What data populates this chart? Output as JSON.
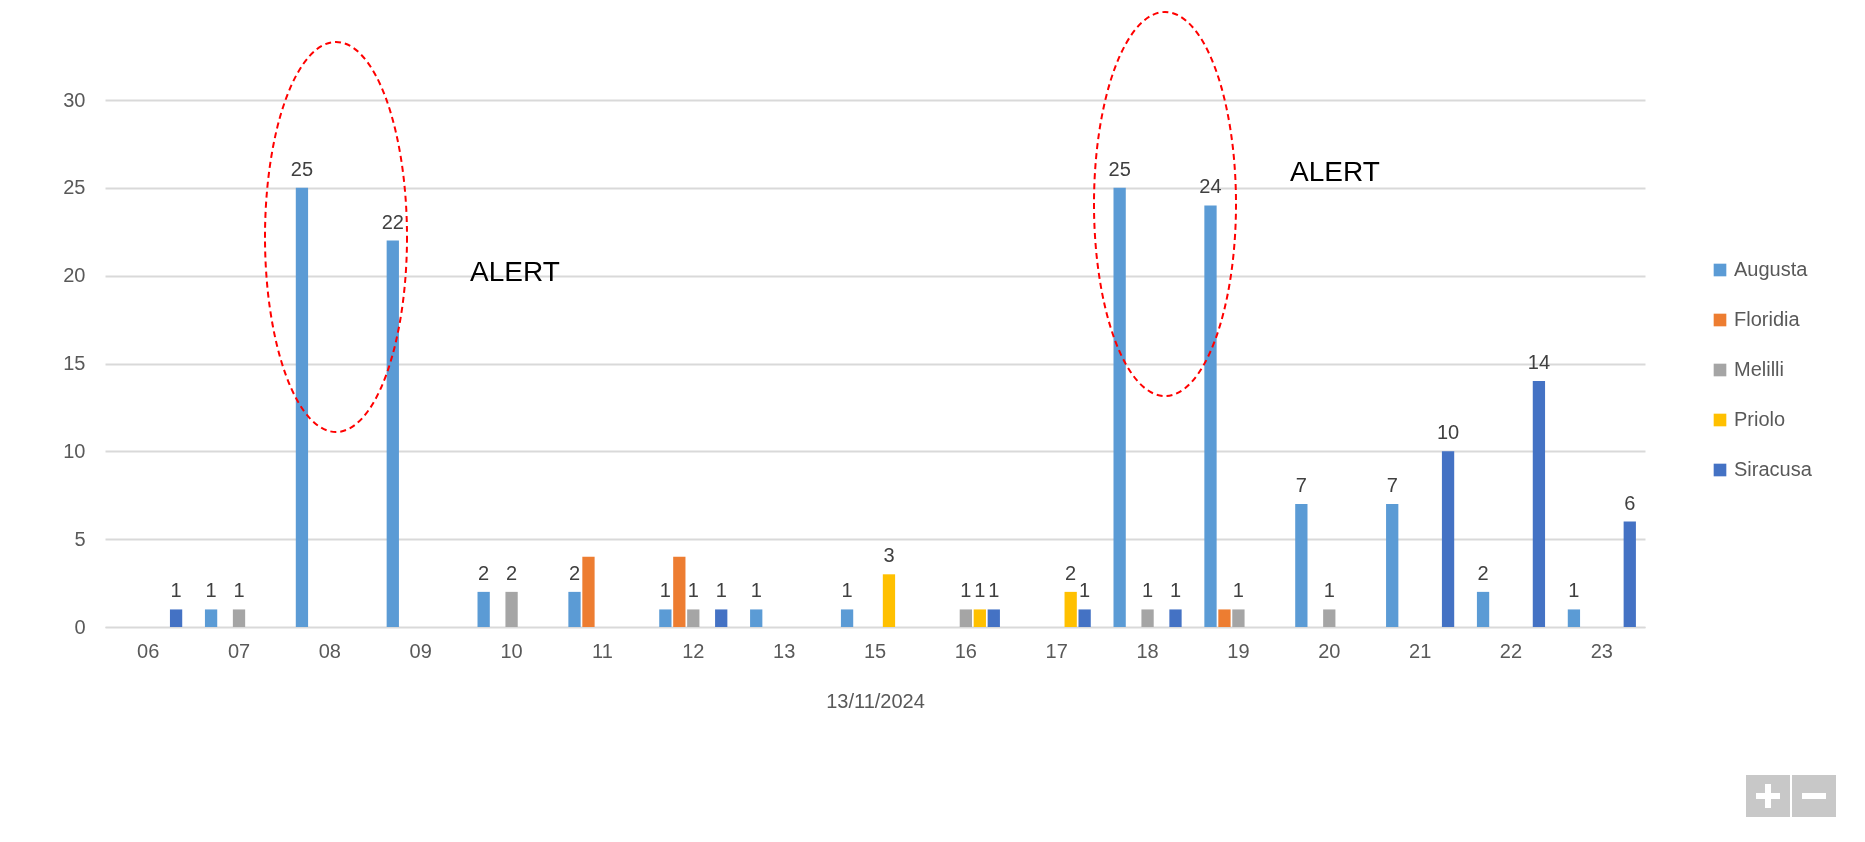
{
  "chart_data": {
    "type": "bar",
    "xlabel": "13/11/2024",
    "categories": [
      "06",
      "07",
      "08",
      "09",
      "10",
      "11",
      "12",
      "13",
      "15",
      "16",
      "17",
      "18",
      "19",
      "20",
      "21",
      "22",
      "23"
    ],
    "series": [
      {
        "name": "Augusta",
        "color": "#5b9bd5",
        "values": [
          null,
          1,
          25,
          22,
          2,
          2,
          1,
          1,
          1,
          null,
          null,
          25,
          24,
          7,
          7,
          2,
          1
        ],
        "value_labels": [
          null,
          "1",
          "25",
          "22",
          "2",
          "2",
          "1",
          "1",
          "1",
          null,
          null,
          "25",
          "24",
          "7",
          "7",
          "2",
          "1"
        ]
      },
      {
        "name": "Floridia",
        "color": "#ed7d31",
        "values": [
          null,
          null,
          null,
          null,
          null,
          4,
          4,
          null,
          null,
          null,
          null,
          null,
          1,
          null,
          null,
          null,
          null
        ],
        "value_labels": [
          null,
          null,
          null,
          null,
          null,
          null,
          null,
          null,
          null,
          null,
          null,
          null,
          null,
          null,
          null,
          null,
          null
        ]
      },
      {
        "name": "Melilli",
        "color": "#a5a5a5",
        "values": [
          null,
          1,
          null,
          null,
          2,
          null,
          1,
          null,
          null,
          1,
          null,
          1,
          1,
          1,
          null,
          null,
          null
        ],
        "value_labels": [
          null,
          "1",
          null,
          null,
          "2",
          null,
          "1",
          null,
          null,
          "1",
          null,
          "1",
          "1",
          "1",
          null,
          null,
          null
        ]
      },
      {
        "name": "Priolo",
        "color": "#ffc000",
        "values": [
          null,
          null,
          null,
          null,
          null,
          null,
          null,
          null,
          3,
          1,
          2,
          null,
          null,
          null,
          null,
          null,
          null
        ],
        "value_labels": [
          null,
          null,
          null,
          null,
          null,
          null,
          null,
          null,
          "3",
          "1",
          "2",
          null,
          null,
          null,
          null,
          null,
          null
        ]
      },
      {
        "name": "Siracusa",
        "color": "#4472c4",
        "values": [
          1,
          null,
          null,
          null,
          null,
          null,
          1,
          null,
          null,
          1,
          1,
          1,
          null,
          null,
          10,
          14,
          6
        ],
        "value_labels": [
          "1",
          null,
          null,
          null,
          null,
          null,
          "1",
          null,
          null,
          "1",
          "1",
          "1",
          null,
          null,
          "10",
          "14",
          "6"
        ]
      }
    ],
    "ylim": [
      0,
      30
    ],
    "yticks": [
      0,
      5,
      10,
      15,
      20,
      25,
      30
    ],
    "grid": "y",
    "legend": "right",
    "annotations": [
      "ALERT",
      "ALERT"
    ]
  }
}
